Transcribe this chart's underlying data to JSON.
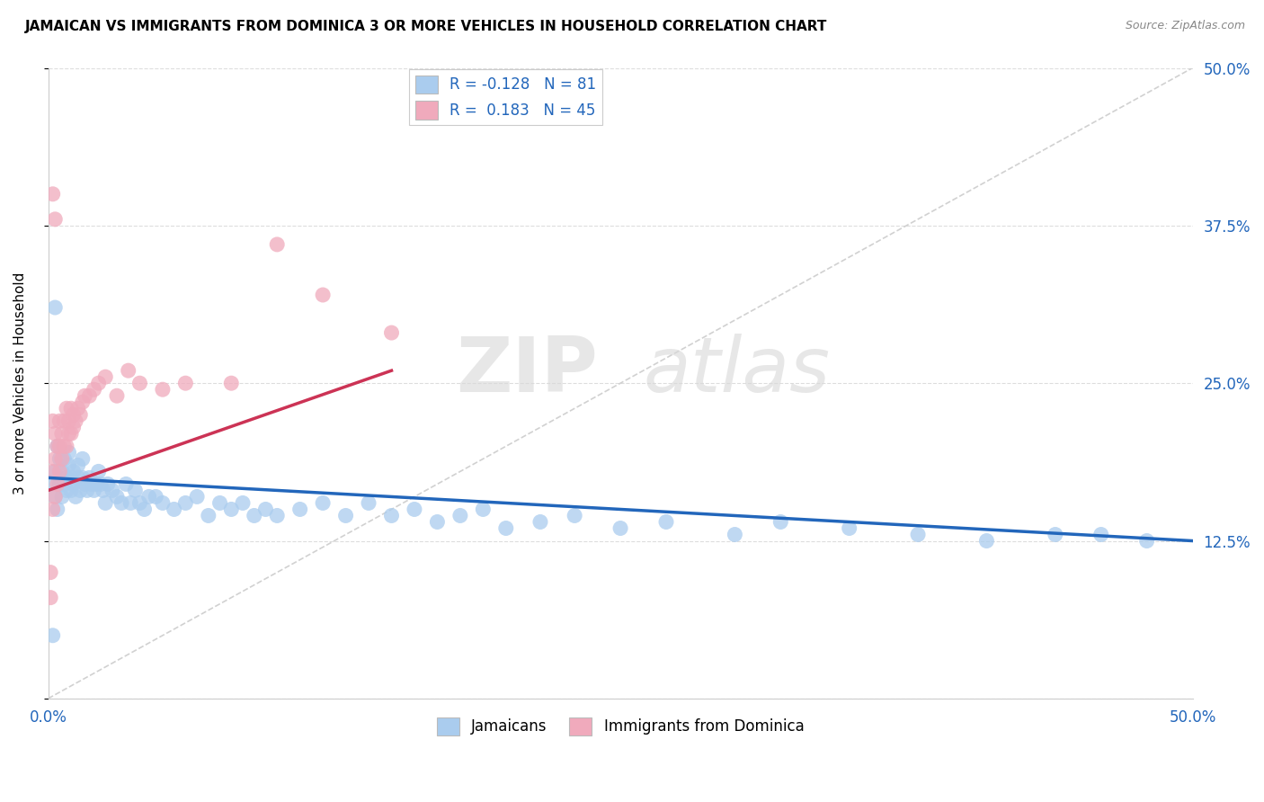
{
  "title": "JAMAICAN VS IMMIGRANTS FROM DOMINICA 3 OR MORE VEHICLES IN HOUSEHOLD CORRELATION CHART",
  "source": "Source: ZipAtlas.com",
  "ylabel": "3 or more Vehicles in Household",
  "legend_jamaicans": "Jamaicans",
  "legend_dominica": "Immigrants from Dominica",
  "r_jamaicans": -0.128,
  "n_jamaicans": 81,
  "r_dominica": 0.183,
  "n_dominica": 45,
  "color_jamaicans": "#aaccee",
  "color_dominica": "#f0aabc",
  "color_line_jamaicans": "#2266bb",
  "color_line_dominica": "#cc3355",
  "xmin": 0.0,
  "xmax": 0.5,
  "ymin": 0.0,
  "ymax": 0.5,
  "watermark_zip": "ZIP",
  "watermark_atlas": "atlas",
  "background_color": "#ffffff",
  "grid_color": "#dddddd",
  "jamaicans_x": [
    0.001,
    0.002,
    0.003,
    0.003,
    0.004,
    0.004,
    0.005,
    0.005,
    0.006,
    0.006,
    0.007,
    0.007,
    0.008,
    0.008,
    0.009,
    0.009,
    0.01,
    0.01,
    0.011,
    0.011,
    0.012,
    0.013,
    0.013,
    0.014,
    0.015,
    0.015,
    0.016,
    0.017,
    0.018,
    0.019,
    0.02,
    0.021,
    0.022,
    0.023,
    0.024,
    0.025,
    0.026,
    0.028,
    0.03,
    0.032,
    0.034,
    0.036,
    0.038,
    0.04,
    0.042,
    0.044,
    0.047,
    0.05,
    0.055,
    0.06,
    0.065,
    0.07,
    0.075,
    0.08,
    0.085,
    0.09,
    0.095,
    0.1,
    0.11,
    0.12,
    0.13,
    0.14,
    0.15,
    0.16,
    0.17,
    0.18,
    0.19,
    0.2,
    0.215,
    0.23,
    0.25,
    0.27,
    0.3,
    0.32,
    0.35,
    0.38,
    0.41,
    0.44,
    0.46,
    0.48,
    0.003
  ],
  "jamaicans_y": [
    0.17,
    0.05,
    0.18,
    0.16,
    0.15,
    0.2,
    0.17,
    0.19,
    0.16,
    0.18,
    0.17,
    0.19,
    0.175,
    0.165,
    0.185,
    0.195,
    0.175,
    0.165,
    0.17,
    0.18,
    0.16,
    0.175,
    0.185,
    0.165,
    0.175,
    0.19,
    0.17,
    0.165,
    0.175,
    0.17,
    0.165,
    0.17,
    0.18,
    0.17,
    0.165,
    0.155,
    0.17,
    0.165,
    0.16,
    0.155,
    0.17,
    0.155,
    0.165,
    0.155,
    0.15,
    0.16,
    0.16,
    0.155,
    0.15,
    0.155,
    0.16,
    0.145,
    0.155,
    0.15,
    0.155,
    0.145,
    0.15,
    0.145,
    0.15,
    0.155,
    0.145,
    0.155,
    0.145,
    0.15,
    0.14,
    0.145,
    0.15,
    0.135,
    0.14,
    0.145,
    0.135,
    0.14,
    0.13,
    0.14,
    0.135,
    0.13,
    0.125,
    0.13,
    0.13,
    0.125,
    0.31
  ],
  "dominica_x": [
    0.001,
    0.001,
    0.002,
    0.002,
    0.002,
    0.003,
    0.003,
    0.003,
    0.004,
    0.004,
    0.005,
    0.005,
    0.005,
    0.006,
    0.006,
    0.007,
    0.007,
    0.008,
    0.008,
    0.009,
    0.009,
    0.01,
    0.01,
    0.011,
    0.011,
    0.012,
    0.013,
    0.014,
    0.015,
    0.016,
    0.018,
    0.02,
    0.022,
    0.025,
    0.03,
    0.035,
    0.04,
    0.05,
    0.06,
    0.08,
    0.1,
    0.12,
    0.15,
    0.002,
    0.003
  ],
  "dominica_y": [
    0.1,
    0.08,
    0.15,
    0.18,
    0.22,
    0.16,
    0.19,
    0.21,
    0.17,
    0.2,
    0.18,
    0.2,
    0.22,
    0.19,
    0.21,
    0.2,
    0.22,
    0.2,
    0.23,
    0.21,
    0.22,
    0.21,
    0.23,
    0.215,
    0.225,
    0.22,
    0.23,
    0.225,
    0.235,
    0.24,
    0.24,
    0.245,
    0.25,
    0.255,
    0.24,
    0.26,
    0.25,
    0.245,
    0.25,
    0.25,
    0.36,
    0.32,
    0.29,
    0.4,
    0.38
  ],
  "line_j_x0": 0.0,
  "line_j_x1": 0.5,
  "line_j_y0": 0.175,
  "line_j_y1": 0.125,
  "line_d_x0": 0.0,
  "line_d_x1": 0.15,
  "line_d_y0": 0.165,
  "line_d_y1": 0.26
}
